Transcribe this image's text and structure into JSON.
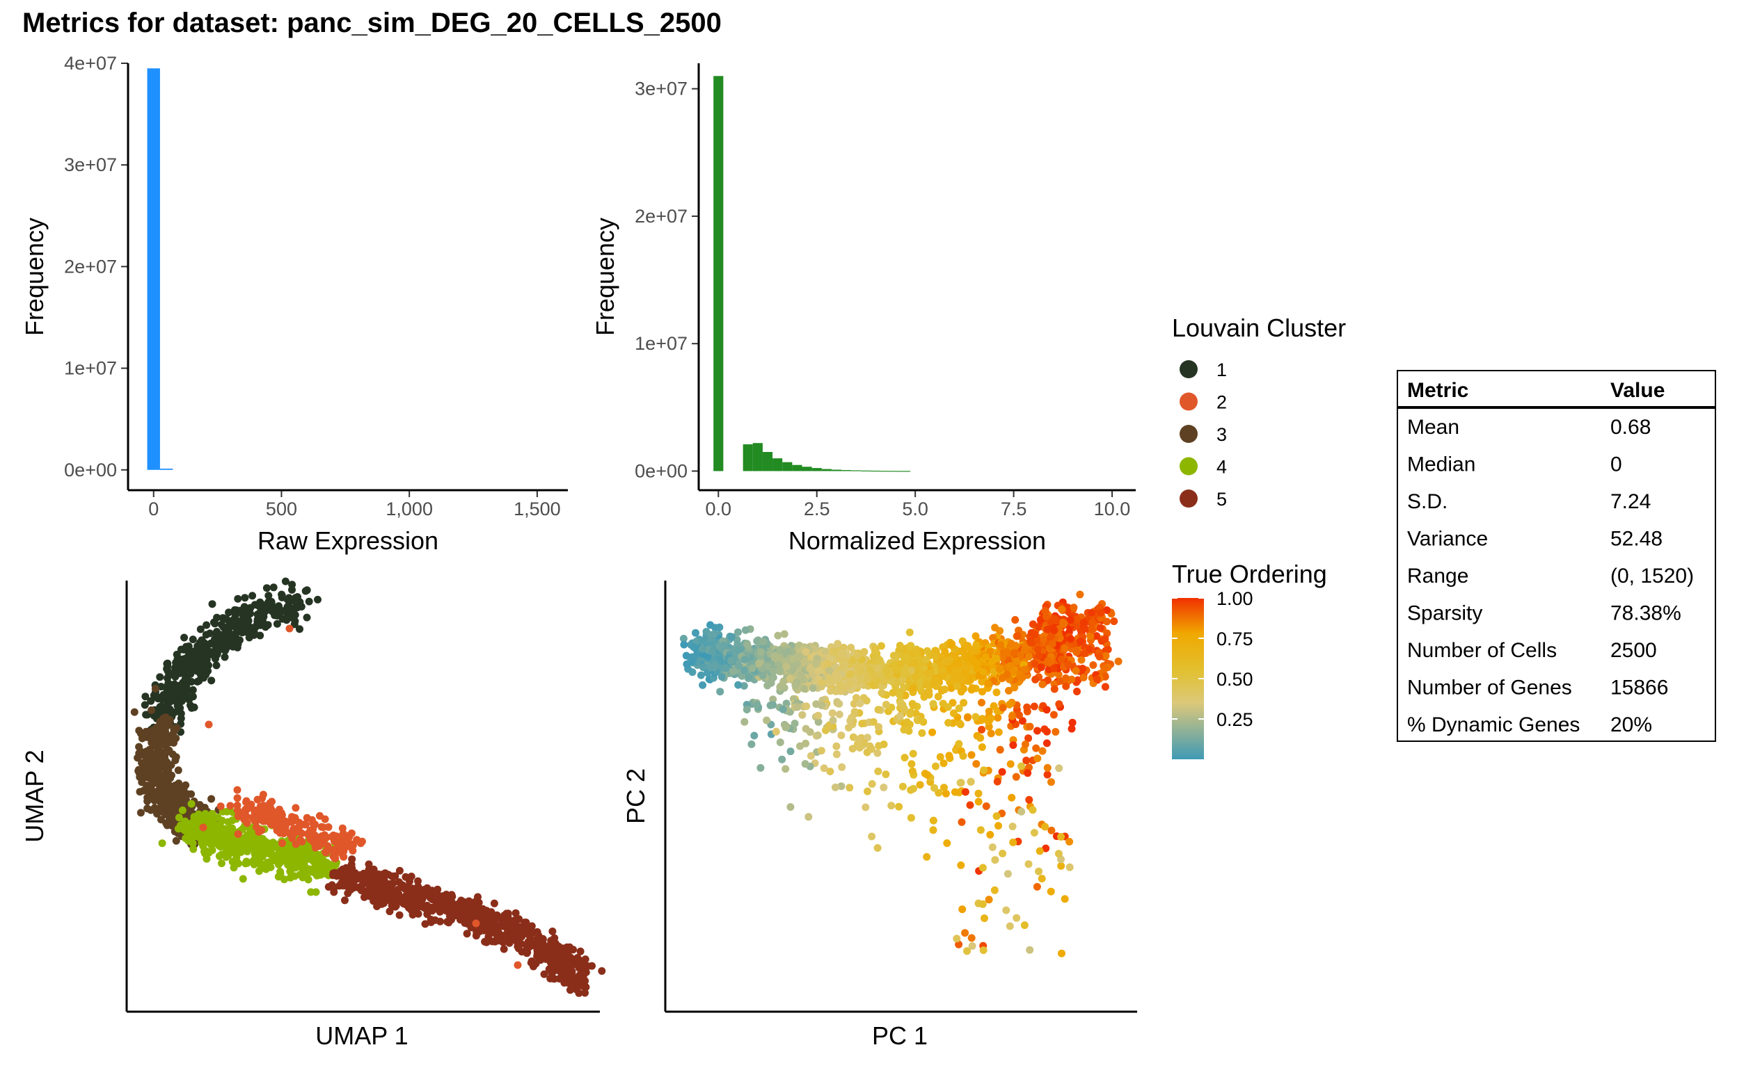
{
  "title": "Metrics for dataset: panc_sim_DEG_20_CELLS_2500",
  "colors": {
    "raw_hist": "#1e90ff",
    "norm_hist": "#228b22",
    "clusters": [
      "#263523",
      "#e0572a",
      "#5e4123",
      "#8db600",
      "#8a2e1a"
    ],
    "ordering_gradient": [
      "#3f9ab5",
      "#dcc87a",
      "#e2c030",
      "#f0a800",
      "#f03000"
    ]
  },
  "legend_cluster": {
    "title": "Louvain Cluster",
    "items": [
      "1",
      "2",
      "3",
      "4",
      "5"
    ]
  },
  "legend_ordering": {
    "title": "True Ordering",
    "ticks": [
      "1.00",
      "0.75",
      "0.50",
      "0.25"
    ]
  },
  "table": {
    "headers": [
      "Metric",
      "Value"
    ],
    "rows": [
      [
        "Mean",
        "0.68"
      ],
      [
        "Median",
        "0"
      ],
      [
        "S.D.",
        "7.24"
      ],
      [
        "Variance",
        "52.48"
      ],
      [
        "Range",
        "(0, 1520)"
      ],
      [
        "Sparsity",
        "78.38%"
      ],
      [
        "Number of Cells",
        "2500"
      ],
      [
        "Number of Genes",
        "15866"
      ],
      [
        "% Dynamic Genes",
        "20%"
      ]
    ]
  },
  "chart_data": [
    {
      "type": "bar",
      "name": "raw_histogram",
      "xlabel": "Raw Expression",
      "ylabel": "Frequency",
      "xlim": [
        -100,
        1620
      ],
      "ylim": [
        -2000000,
        40000000
      ],
      "x_ticks": [
        0,
        500,
        1000,
        1500
      ],
      "x_tick_labels": [
        "0",
        "500",
        "1,000",
        "1,500"
      ],
      "y_ticks": [
        0,
        10000000,
        20000000,
        30000000,
        40000000
      ],
      "y_tick_labels": [
        "0e+00",
        "1e+07",
        "2e+07",
        "3e+07",
        "4e+07"
      ],
      "bin_width": 50,
      "bins": [
        {
          "x": 0,
          "count": 39500000
        },
        {
          "x": 50,
          "count": 120000
        }
      ]
    },
    {
      "type": "bar",
      "name": "normalized_histogram",
      "xlabel": "Normalized Expression",
      "ylabel": "Frequency",
      "xlim": [
        -0.5,
        10.6
      ],
      "ylim": [
        -1500000,
        32000000
      ],
      "x_ticks": [
        0,
        2.5,
        5,
        7.5,
        10
      ],
      "x_tick_labels": [
        "0.0",
        "2.5",
        "5.0",
        "7.5",
        "10.0"
      ],
      "y_ticks": [
        0,
        10000000,
        20000000,
        30000000
      ],
      "y_tick_labels": [
        "0e+00",
        "1e+07",
        "2e+07",
        "3e+07"
      ],
      "bin_width": 0.25,
      "bins": [
        {
          "x": 0,
          "count": 31000000
        },
        {
          "x": 0.75,
          "count": 2100000
        },
        {
          "x": 1.0,
          "count": 2200000
        },
        {
          "x": 1.25,
          "count": 1500000
        },
        {
          "x": 1.5,
          "count": 1000000
        },
        {
          "x": 1.75,
          "count": 700000
        },
        {
          "x": 2.0,
          "count": 480000
        },
        {
          "x": 2.25,
          "count": 340000
        },
        {
          "x": 2.5,
          "count": 240000
        },
        {
          "x": 2.75,
          "count": 160000
        },
        {
          "x": 3.0,
          "count": 110000
        },
        {
          "x": 3.25,
          "count": 80000
        },
        {
          "x": 3.5,
          "count": 60000
        },
        {
          "x": 3.75,
          "count": 40000
        },
        {
          "x": 4.0,
          "count": 30000
        },
        {
          "x": 4.25,
          "count": 20000
        },
        {
          "x": 4.5,
          "count": 15000
        },
        {
          "x": 4.75,
          "count": 10000
        }
      ]
    },
    {
      "type": "scatter",
      "name": "umap",
      "xlabel": "UMAP 1",
      "ylabel": "UMAP 2",
      "n_points": 2500,
      "color_by": "Louvain Cluster",
      "points": "generated by script along cluster trajectories"
    },
    {
      "type": "scatter",
      "name": "pca",
      "xlabel": "PC 1",
      "ylabel": "PC 2",
      "n_points": 2500,
      "color_by": "True Ordering",
      "color_range": [
        0,
        1
      ],
      "points": "generated by script along ordering trajectory"
    }
  ]
}
